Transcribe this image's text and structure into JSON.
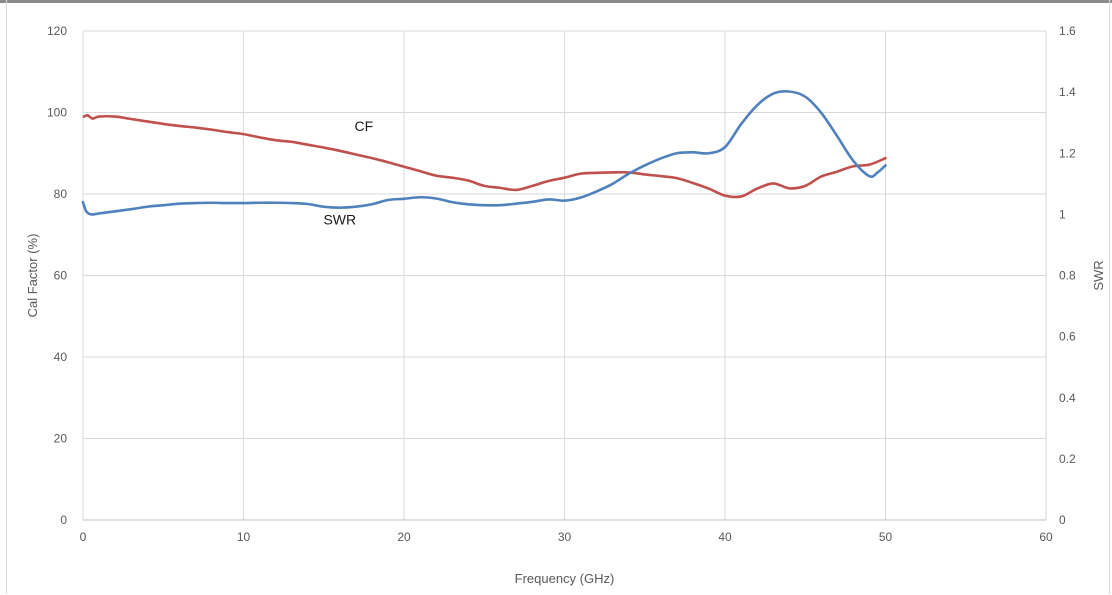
{
  "chart_data": {
    "type": "line",
    "title": "",
    "xlabel": "Frequency (GHz)",
    "ylabel_left": "Cal Factor (%)",
    "ylabel_right": "SWR",
    "xlim": [
      0,
      60
    ],
    "ylim_left": [
      0,
      120
    ],
    "ylim_right": [
      0,
      1.6
    ],
    "x_ticks": [
      "0",
      "10",
      "20",
      "30",
      "40",
      "50",
      "60"
    ],
    "y_left_ticks": [
      "0",
      "20",
      "40",
      "60",
      "80",
      "100",
      "120"
    ],
    "y_right_ticks": [
      "0",
      "0.2",
      "0.4",
      "0.6",
      "0.8",
      "1",
      "1.2",
      "1.4",
      "1.6"
    ],
    "grid": true,
    "colors": {
      "CF": "#c0504d",
      "SWR": "#4f81bd",
      "grid": "#d9d9d9",
      "text": "#595959"
    },
    "series": [
      {
        "name": "CF",
        "axis": "left",
        "x": [
          0.05,
          0.3,
          0.6,
          1,
          2,
          3,
          4,
          5,
          6,
          7,
          8,
          9,
          10,
          11,
          12,
          13,
          14,
          15,
          16,
          17,
          18,
          19,
          20,
          21,
          22,
          23,
          24,
          25,
          26,
          27,
          28,
          29,
          30,
          31,
          32,
          33,
          34,
          35,
          36,
          37,
          38,
          39,
          40,
          41,
          42,
          43,
          44,
          45,
          46,
          47,
          48,
          49,
          50
        ],
        "y": [
          99,
          99.3,
          98.5,
          99,
          99,
          98.4,
          97.8,
          97.2,
          96.7,
          96.3,
          95.8,
          95.2,
          94.7,
          93.9,
          93.2,
          92.8,
          92.1,
          91.4,
          90.6,
          89.7,
          88.8,
          87.8,
          86.7,
          85.6,
          84.5,
          84,
          83.3,
          82,
          81.5,
          81,
          82,
          83.2,
          84,
          85,
          85.2,
          85.3,
          85.3,
          84.8,
          84.4,
          83.9,
          82.7,
          81.3,
          79.6,
          79.4,
          81.3,
          82.6,
          81.4,
          82,
          84.3,
          85.5,
          86.8,
          87.2,
          88.8
        ]
      },
      {
        "name": "SWR",
        "axis": "right",
        "x": [
          0,
          0.2,
          0.5,
          1,
          2,
          3,
          4,
          5,
          6,
          7,
          8,
          9,
          10,
          11,
          12,
          13,
          14,
          15,
          16,
          17,
          18,
          19,
          20,
          21,
          22,
          23,
          24,
          25,
          26,
          27,
          28,
          29,
          30,
          31,
          32,
          33,
          34,
          35,
          36,
          37,
          38,
          39,
          40,
          41,
          42,
          43,
          44,
          45,
          46,
          47,
          48,
          49,
          49.5,
          50
        ],
        "y": [
          1.04,
          1.01,
          1.0,
          1.003,
          1.01,
          1.017,
          1.025,
          1.03,
          1.035,
          1.037,
          1.038,
          1.037,
          1.037,
          1.038,
          1.038,
          1.037,
          1.034,
          1.025,
          1.022,
          1.025,
          1.033,
          1.047,
          1.051,
          1.056,
          1.052,
          1.04,
          1.033,
          1.03,
          1.03,
          1.035,
          1.041,
          1.049,
          1.045,
          1.055,
          1.075,
          1.1,
          1.133,
          1.16,
          1.183,
          1.2,
          1.203,
          1.2,
          1.22,
          1.295,
          1.357,
          1.395,
          1.402,
          1.385,
          1.332,
          1.255,
          1.175,
          1.125,
          1.137,
          1.16
        ]
      }
    ],
    "annotations": [
      {
        "text": "CF",
        "series": "CF",
        "x": 17.5,
        "y": 95.5
      },
      {
        "text": "SWR",
        "series": "SWR",
        "x": 16,
        "y": 72.5
      }
    ]
  }
}
